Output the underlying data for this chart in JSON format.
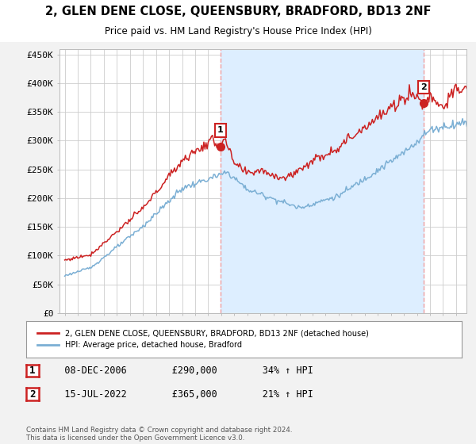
{
  "title": "2, GLEN DENE CLOSE, QUEENSBURY, BRADFORD, BD13 2NF",
  "subtitle": "Price paid vs. HM Land Registry's House Price Index (HPI)",
  "ylim": [
    0,
    460000
  ],
  "yticks": [
    0,
    50000,
    100000,
    150000,
    200000,
    250000,
    300000,
    350000,
    400000,
    450000
  ],
  "ytick_labels": [
    "£0",
    "£50K",
    "£100K",
    "£150K",
    "£200K",
    "£250K",
    "£300K",
    "£350K",
    "£400K",
    "£450K"
  ],
  "hpi_color": "#7bafd4",
  "price_color": "#cc2222",
  "vline_color": "#f0a0a0",
  "shade_color": "#ddeeff",
  "bg_color": "#f2f2f2",
  "plot_bg_color": "#ffffff",
  "grid_color": "#cccccc",
  "legend_label_price": "2, GLEN DENE CLOSE, QUEENSBURY, BRADFORD, BD13 2NF (detached house)",
  "legend_label_hpi": "HPI: Average price, detached house, Bradford",
  "table_rows": [
    {
      "num": "1",
      "date": "08-DEC-2006",
      "price": "£290,000",
      "hpi": "34% ↑ HPI"
    },
    {
      "num": "2",
      "date": "15-JUL-2022",
      "price": "£365,000",
      "hpi": "21% ↑ HPI"
    }
  ],
  "footnote": "Contains HM Land Registry data © Crown copyright and database right 2024.\nThis data is licensed under the Open Government Licence v3.0.",
  "sale1_year": 2006.92,
  "sale1_price": 290000,
  "sale2_year": 2022.54,
  "sale2_price": 365000
}
